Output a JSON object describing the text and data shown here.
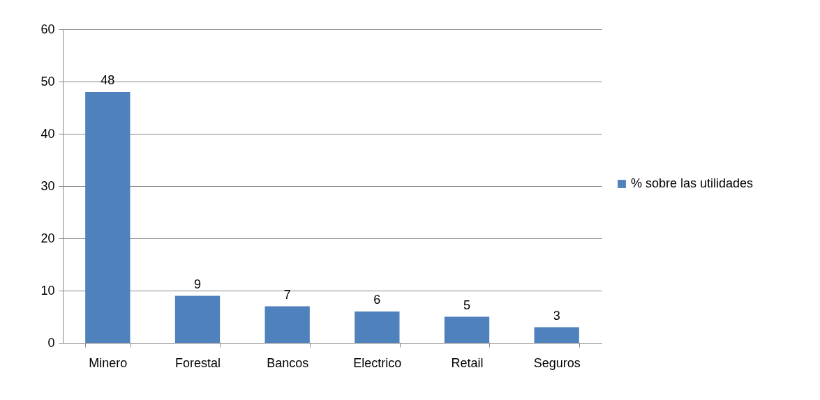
{
  "chart_data": {
    "type": "bar",
    "categories": [
      "Minero",
      "Forestal",
      "Bancos",
      "Electrico",
      "Retail",
      "Seguros"
    ],
    "series": [
      {
        "name": "% sobre las utilidades",
        "color": "#4f81bd",
        "values": [
          48,
          9,
          7,
          6,
          5,
          3
        ]
      }
    ],
    "ylim": [
      0,
      60
    ],
    "yticks": [
      0,
      10,
      20,
      30,
      40,
      50,
      60
    ],
    "grid": "y",
    "legend": "right",
    "data_labels": true
  }
}
